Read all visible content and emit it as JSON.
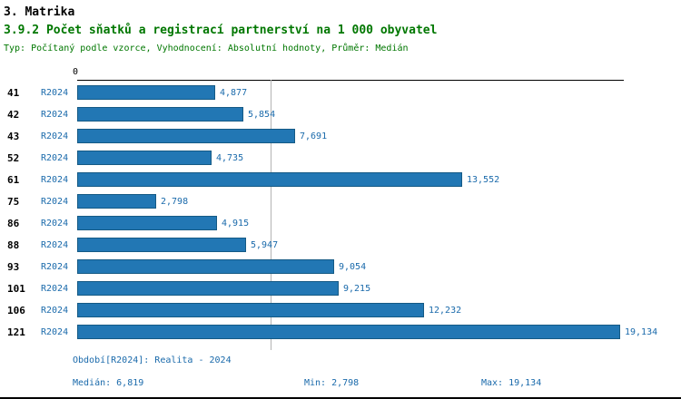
{
  "header": {
    "title": "3. Matrika",
    "subtitle": "3.9.2 Počet sňatků a registrací partnerství na 1 000 obyvatel",
    "type_line": "Typ: Počítaný podle vzorce, Vyhodnocení: Absolutní hodnoty, Průměr: Medián"
  },
  "chart_data": {
    "type": "bar",
    "orientation": "horizontal",
    "title": "3.9.2 Počet sňatků a registrací partnerství na 1 000 obyvatel",
    "categories": [
      "41",
      "42",
      "43",
      "52",
      "61",
      "75",
      "86",
      "88",
      "93",
      "101",
      "106",
      "121"
    ],
    "series": [
      {
        "name": "R2024",
        "values": [
          4877,
          5854,
          7691,
          4735,
          13552,
          2798,
          4915,
          5947,
          9054,
          9215,
          12232,
          19134
        ]
      }
    ],
    "value_labels": [
      "4,877",
      "5,854",
      "7,691",
      "4,735",
      "13,552",
      "2,798",
      "4,915",
      "5,947",
      "9,054",
      "9,215",
      "12,232",
      "19,134"
    ],
    "x_axis": {
      "origin_label": "0",
      "xlim": [
        0,
        19134
      ]
    },
    "median_value": 6819,
    "min_value": 2798,
    "max_value": 19134,
    "grid": "median-line-only",
    "legend": "none",
    "bar_color": "#2277b4",
    "bar_border_color": "#155a85"
  },
  "footer": {
    "period": "Období[R2024]: Realita - 2024",
    "median": "Medián: 6,819",
    "min": "Min: 2,798",
    "max": "Max: 19,134"
  },
  "colors": {
    "title_black": "#000000",
    "heading_green": "#007700",
    "label_blue": "#1a6aab",
    "bar_fill": "#2277b4",
    "median_line_gray": "#b3b3b3",
    "axis_black": "#000000"
  }
}
